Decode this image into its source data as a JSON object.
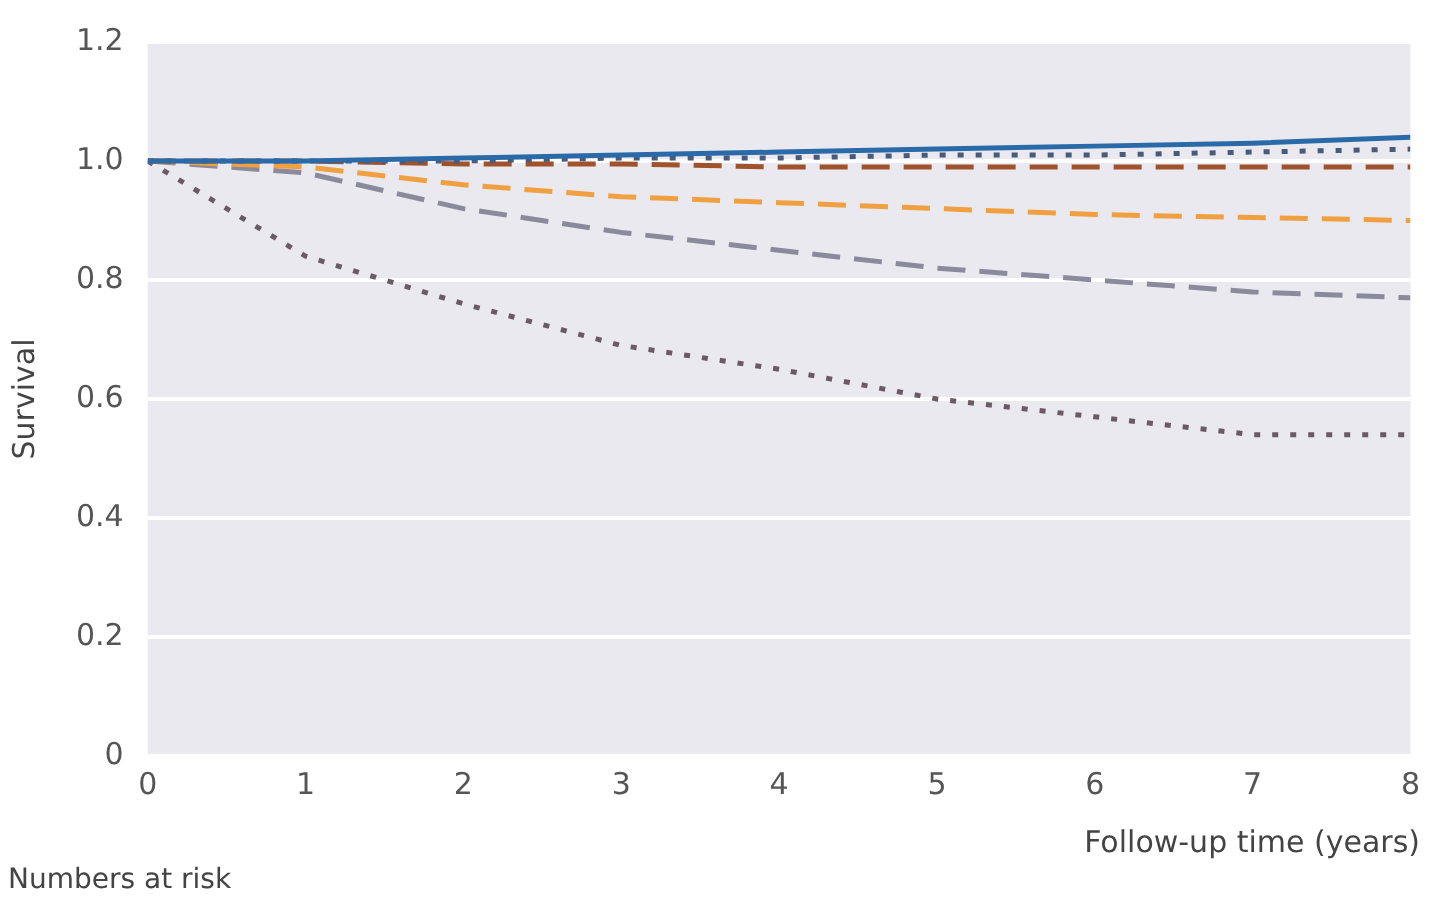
{
  "chart_data": {
    "type": "line",
    "ylabel": "Survival",
    "xlabel": "Follow-up time (years)",
    "x": [
      0,
      1,
      2,
      3,
      4,
      5,
      6,
      7,
      8
    ],
    "series": [
      {
        "color": "#2a6aa8",
        "line_style": "solid",
        "values": [
          1.0,
          1.0,
          1.005,
          1.01,
          1.015,
          1.02,
          1.025,
          1.03,
          1.04
        ]
      },
      {
        "color": "#4a5a7a",
        "line_style": "dotted",
        "values": [
          1.0,
          1.0,
          1.0,
          1.005,
          1.005,
          1.01,
          1.01,
          1.015,
          1.02
        ]
      },
      {
        "color": "#a0522d",
        "line_style": "dashed",
        "values": [
          1.0,
          1.0,
          0.995,
          0.995,
          0.99,
          0.99,
          0.99,
          0.99,
          0.99
        ]
      },
      {
        "color": "#f0a040",
        "line_style": "dashed",
        "values": [
          1.0,
          0.99,
          0.96,
          0.94,
          0.93,
          0.92,
          0.91,
          0.905,
          0.9
        ]
      },
      {
        "color": "#8a8a9c",
        "line_style": "dashed",
        "values": [
          1.0,
          0.98,
          0.92,
          0.88,
          0.85,
          0.82,
          0.8,
          0.78,
          0.77
        ]
      },
      {
        "color": "#6a5a66",
        "line_style": "dotted",
        "values": [
          1.0,
          0.84,
          0.76,
          0.69,
          0.65,
          0.6,
          0.57,
          0.54,
          0.54
        ]
      }
    ],
    "xlim": [
      0,
      8
    ],
    "xticks": [
      0,
      1,
      2,
      3,
      4,
      5,
      6,
      7,
      8
    ],
    "ylim": [
      0,
      1.2
    ],
    "yticks": [
      0,
      0.2,
      0.4,
      0.6,
      0.8,
      {
        "value": 1,
        "label": "1.0"
      },
      1.2
    ],
    "grid": "y",
    "legend": false,
    "marker": "none",
    "annotations": [
      "Numbers at risk"
    ]
  }
}
